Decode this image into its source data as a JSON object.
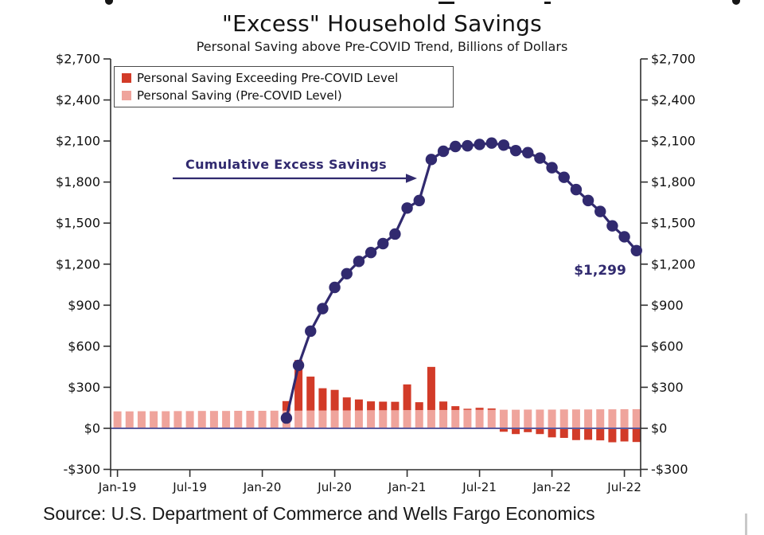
{
  "header": {
    "title": "\"Excess\" Household Savings",
    "subtitle": "Personal Saving above Pre-COVID Trend, Billions of Dollars"
  },
  "legend": {
    "items": [
      {
        "label": "Personal Saving Exceeding Pre-COVID Level",
        "color": "#d23b28"
      },
      {
        "label": "Personal Saving (Pre-COVID Level)",
        "color": "#efa49c"
      }
    ]
  },
  "annotation": {
    "text": "Cumulative Excess Savings",
    "color": "#312a6f"
  },
  "end_label": {
    "text": "$1,299"
  },
  "source": {
    "text": "Source: U.S. Department of Commerce and Wells Fargo Economics"
  },
  "colors": {
    "navy": "#312a6f",
    "red": "#d23b28",
    "pink": "#efa49c",
    "axis": "#2f2f2f",
    "zero_line": "#5b5b9e",
    "tick_text": "#111111"
  },
  "chart_data": {
    "type": "combo_bar_line",
    "title": "\"Excess\" Household Savings",
    "subtitle": "Personal Saving above Pre-COVID Trend, Billions of Dollars",
    "units": "Billions of Dollars",
    "ylim": [
      -300,
      2700
    ],
    "ytick_values": [
      2700,
      2400,
      2100,
      1800,
      1500,
      1200,
      900,
      600,
      300,
      0,
      -300
    ],
    "ytick_labels": [
      "$2,700",
      "$2,400",
      "$2,100",
      "$1,800",
      "$1,500",
      "$1,200",
      "$900",
      "$600",
      "$300",
      "$0",
      "-$300"
    ],
    "xtick_labels": [
      "Jan-19",
      "Jul-19",
      "Jan-20",
      "Jul-20",
      "Jan-21",
      "Jul-21",
      "Jan-22",
      "Jul-22"
    ],
    "xtick_month_indices": [
      0,
      6,
      12,
      18,
      24,
      30,
      36,
      42
    ],
    "months": [
      "Jan-19",
      "Feb-19",
      "Mar-19",
      "Apr-19",
      "May-19",
      "Jun-19",
      "Jul-19",
      "Aug-19",
      "Sep-19",
      "Oct-19",
      "Nov-19",
      "Dec-19",
      "Jan-20",
      "Feb-20",
      "Mar-20",
      "Apr-20",
      "May-20",
      "Jun-20",
      "Jul-20",
      "Aug-20",
      "Sep-20",
      "Oct-20",
      "Nov-20",
      "Dec-20",
      "Jan-21",
      "Feb-21",
      "Mar-21",
      "Apr-21",
      "May-21",
      "Jun-21",
      "Jul-21",
      "Aug-21",
      "Sep-21",
      "Oct-21",
      "Nov-21",
      "Dec-21",
      "Jan-22",
      "Feb-22",
      "Mar-22",
      "Apr-22",
      "May-22",
      "Jun-22",
      "Jul-22",
      "Aug-22"
    ],
    "bar_series": [
      {
        "name": "Personal Saving (Pre-COVID Level)",
        "color": "#efa49c",
        "values": [
          124,
          124,
          125,
          125,
          125,
          126,
          126,
          127,
          127,
          127,
          128,
          128,
          128,
          129,
          129,
          129,
          130,
          130,
          131,
          131,
          131,
          132,
          132,
          132,
          133,
          133,
          134,
          134,
          134,
          135,
          135,
          135,
          136,
          136,
          137,
          137,
          137,
          138,
          138,
          138,
          139,
          139,
          140,
          140
        ]
      },
      {
        "name": "Personal Saving Exceeding Pre-COVID Level",
        "color": "#d23b28",
        "values": [
          0,
          0,
          0,
          0,
          0,
          0,
          0,
          0,
          0,
          0,
          0,
          0,
          0,
          0,
          70,
          370,
          248,
          163,
          150,
          95,
          80,
          65,
          63,
          62,
          188,
          58,
          315,
          62,
          28,
          8,
          15,
          10,
          -25,
          -42,
          -28,
          -42,
          -66,
          -70,
          -86,
          -84,
          -88,
          -102,
          -96,
          -100
        ]
      }
    ],
    "line_series": {
      "name": "Cumulative Excess Savings",
      "color": "#312a6f",
      "start_month": "Mar-20",
      "start_index": 14,
      "values": [
        75,
        460,
        710,
        875,
        1030,
        1130,
        1220,
        1285,
        1350,
        1420,
        1610,
        1665,
        1965,
        2025,
        2060,
        2065,
        2075,
        2085,
        2070,
        2030,
        2015,
        1975,
        1905,
        1835,
        1745,
        1665,
        1585,
        1480,
        1400,
        1299
      ],
      "end_label": "$1,299"
    },
    "legend_position": "top-left",
    "grid": false
  }
}
